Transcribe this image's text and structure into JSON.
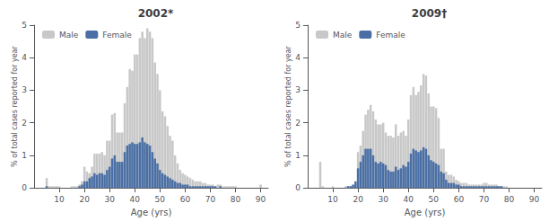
{
  "chart_data": [
    {
      "type": "bar",
      "title": "2002*",
      "xlabel": "Age (yrs)",
      "ylabel": "% of total cases reported for year",
      "x": [
        1,
        2,
        3,
        4,
        5,
        6,
        7,
        8,
        9,
        10,
        11,
        12,
        13,
        14,
        15,
        16,
        17,
        18,
        19,
        20,
        21,
        22,
        23,
        24,
        25,
        26,
        27,
        28,
        29,
        30,
        31,
        32,
        33,
        34,
        35,
        36,
        37,
        38,
        39,
        40,
        41,
        42,
        43,
        44,
        45,
        46,
        47,
        48,
        49,
        50,
        51,
        52,
        53,
        54,
        55,
        56,
        57,
        58,
        59,
        60,
        61,
        62,
        63,
        64,
        65,
        66,
        67,
        68,
        69,
        70,
        71,
        72,
        73,
        74,
        75,
        76,
        77,
        78,
        79,
        80,
        81,
        82,
        83,
        84,
        85,
        86,
        87,
        88,
        89,
        90
      ],
      "series": [
        {
          "name": "Male",
          "color": "#c8c8c8",
          "values": [
            0.0,
            0.0,
            0.0,
            0.0,
            0.3,
            0.05,
            0.05,
            0.05,
            0.05,
            0.05,
            0.0,
            0.0,
            0.0,
            0.0,
            0.05,
            0.05,
            0.05,
            0.1,
            0.2,
            0.65,
            0.5,
            0.45,
            0.65,
            1.05,
            1.05,
            1.05,
            1.1,
            1.0,
            1.45,
            1.45,
            2.25,
            2.3,
            1.7,
            1.7,
            1.7,
            2.6,
            3.1,
            3.65,
            3.6,
            4.1,
            4.1,
            4.6,
            4.8,
            4.6,
            4.9,
            4.8,
            4.6,
            3.85,
            3.5,
            3.0,
            2.35,
            2.2,
            1.9,
            1.6,
            1.45,
            1.0,
            0.75,
            0.55,
            0.45,
            0.4,
            0.35,
            0.3,
            0.25,
            0.2,
            0.2,
            0.2,
            0.15,
            0.15,
            0.1,
            0.1,
            0.1,
            0.05,
            0.1,
            0.1,
            0.05,
            0.05,
            0.05,
            0.05,
            0.05,
            0.05,
            0.0,
            0.0,
            0.0,
            0.0,
            0.0,
            0.0,
            0.0,
            0.0,
            0.0,
            0.1
          ]
        },
        {
          "name": "Female",
          "color": "#4a6fa5",
          "values": [
            0.0,
            0.0,
            0.0,
            0.0,
            0.05,
            0.0,
            0.0,
            0.0,
            0.0,
            0.0,
            0.0,
            0.0,
            0.0,
            0.0,
            0.0,
            0.0,
            0.0,
            0.05,
            0.1,
            0.2,
            0.2,
            0.3,
            0.35,
            0.45,
            0.4,
            0.45,
            0.45,
            0.4,
            0.55,
            0.65,
            0.9,
            1.0,
            0.8,
            0.8,
            0.8,
            1.1,
            1.3,
            1.35,
            1.4,
            1.35,
            1.35,
            1.4,
            1.55,
            1.4,
            1.35,
            1.3,
            1.1,
            0.9,
            0.75,
            0.55,
            0.45,
            0.4,
            0.35,
            0.3,
            0.25,
            0.2,
            0.15,
            0.15,
            0.1,
            0.1,
            0.1,
            0.05,
            0.05,
            0.05,
            0.05,
            0.05,
            0.05,
            0.05,
            0.05,
            0.05,
            0.05,
            0.05,
            0.0,
            0.05,
            0.0,
            0.0,
            0.0,
            0.0,
            0.0,
            0.0,
            0.0,
            0.0,
            0.0,
            0.0,
            0.0,
            0.0,
            0.0,
            0.0,
            0.0,
            0.0
          ]
        }
      ],
      "xlim": [
        0,
        93
      ],
      "xticks": [
        10,
        20,
        30,
        40,
        50,
        60,
        70,
        80,
        90
      ],
      "ylim": [
        0,
        5
      ],
      "yticks": [
        0,
        1,
        2,
        3,
        4,
        5
      ],
      "legend": "upper left"
    },
    {
      "type": "bar",
      "title": "2009†",
      "xlabel": "Age (yrs)",
      "ylabel": "% of total cases reported for year",
      "x": [
        1,
        2,
        3,
        4,
        5,
        6,
        7,
        8,
        9,
        10,
        11,
        12,
        13,
        14,
        15,
        16,
        17,
        18,
        19,
        20,
        21,
        22,
        23,
        24,
        25,
        26,
        27,
        28,
        29,
        30,
        31,
        32,
        33,
        34,
        35,
        36,
        37,
        38,
        39,
        40,
        41,
        42,
        43,
        44,
        45,
        46,
        47,
        48,
        49,
        50,
        51,
        52,
        53,
        54,
        55,
        56,
        57,
        58,
        59,
        60,
        61,
        62,
        63,
        64,
        65,
        66,
        67,
        68,
        69,
        70,
        71,
        72,
        73,
        74,
        75,
        76,
        77,
        78,
        79,
        80,
        81,
        82,
        83,
        84,
        85,
        86,
        87,
        88,
        89,
        90
      ],
      "series": [
        {
          "name": "Male",
          "color": "#c8c8c8",
          "values": [
            0.0,
            0.0,
            0.0,
            0.0,
            0.8,
            0.05,
            0.0,
            0.0,
            0.0,
            0.05,
            0.0,
            0.0,
            0.0,
            0.0,
            0.05,
            0.05,
            0.05,
            0.05,
            0.1,
            1.1,
            1.3,
            1.75,
            2.25,
            2.4,
            2.55,
            2.35,
            2.1,
            1.95,
            1.95,
            2.0,
            1.7,
            1.6,
            1.6,
            1.55,
            1.95,
            1.6,
            1.7,
            1.75,
            1.6,
            2.1,
            2.85,
            3.1,
            2.85,
            2.95,
            3.15,
            3.5,
            3.45,
            2.9,
            2.5,
            2.5,
            2.45,
            2.15,
            1.2,
            1.2,
            0.5,
            0.4,
            0.4,
            0.35,
            0.25,
            0.2,
            0.15,
            0.15,
            0.15,
            0.1,
            0.1,
            0.1,
            0.1,
            0.1,
            0.1,
            0.15,
            0.15,
            0.1,
            0.1,
            0.1,
            0.1,
            0.05,
            0.05,
            0.05,
            0.05,
            0.0,
            0.0,
            0.0,
            0.0,
            0.0,
            0.0,
            0.0,
            0.0,
            0.0,
            0.0,
            0.0
          ]
        },
        {
          "name": "Female",
          "color": "#4a6fa5",
          "values": [
            0.0,
            0.0,
            0.0,
            0.0,
            0.0,
            0.0,
            0.0,
            0.0,
            0.0,
            0.0,
            0.0,
            0.0,
            0.0,
            0.0,
            0.0,
            0.05,
            0.05,
            0.1,
            0.2,
            0.6,
            0.8,
            1.0,
            1.2,
            1.2,
            1.2,
            1.0,
            0.8,
            0.75,
            0.8,
            0.75,
            0.7,
            0.55,
            0.5,
            0.5,
            0.65,
            0.55,
            0.6,
            0.7,
            0.65,
            0.8,
            1.05,
            1.2,
            1.15,
            1.1,
            1.15,
            1.25,
            1.2,
            1.0,
            0.85,
            0.8,
            0.75,
            0.7,
            0.5,
            0.45,
            0.25,
            0.15,
            0.15,
            0.15,
            0.1,
            0.1,
            0.05,
            0.05,
            0.05,
            0.05,
            0.05,
            0.05,
            0.05,
            0.05,
            0.05,
            0.05,
            0.05,
            0.05,
            0.05,
            0.05,
            0.05,
            0.05,
            0.05,
            0.0,
            0.0,
            0.0,
            0.0,
            0.0,
            0.0,
            0.0,
            0.0,
            0.0,
            0.0,
            0.0,
            0.0,
            0.0
          ]
        }
      ],
      "xlim": [
        0,
        93
      ],
      "xticks": [
        10,
        20,
        30,
        40,
        50,
        60,
        70,
        80,
        90
      ],
      "ylim": [
        0,
        5
      ],
      "yticks": [
        0,
        1,
        2,
        3,
        4,
        5
      ],
      "legend": "upper left"
    }
  ]
}
